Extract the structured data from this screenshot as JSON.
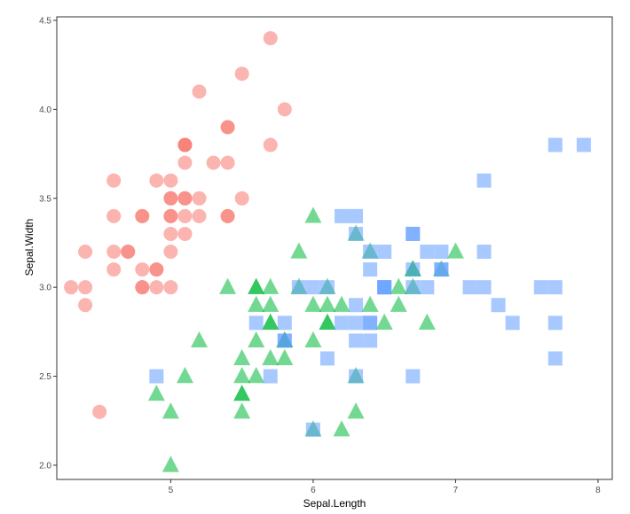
{
  "chart_data": {
    "type": "scatter",
    "title": "",
    "xlabel": "Sepal.Length",
    "ylabel": "Sepal.Width",
    "xlim": [
      4.2,
      8.1
    ],
    "ylim": [
      1.92,
      4.52
    ],
    "xticks": [
      5,
      6,
      7,
      8
    ],
    "yticks": [
      2.0,
      2.5,
      3.0,
      3.5,
      4.0,
      4.5
    ],
    "xtick_labels": [
      "5",
      "6",
      "7",
      "8"
    ],
    "ytick_labels": [
      "2.0",
      "2.5",
      "3.0",
      "3.5",
      "4.0",
      "4.5"
    ],
    "grid": false,
    "legend": "none",
    "series": [
      {
        "marker": "circle",
        "color": "#F8766D",
        "points": [
          [
            5.1,
            3.5
          ],
          [
            4.9,
            3.0
          ],
          [
            4.7,
            3.2
          ],
          [
            4.6,
            3.1
          ],
          [
            5.0,
            3.6
          ],
          [
            5.4,
            3.9
          ],
          [
            4.6,
            3.4
          ],
          [
            5.0,
            3.4
          ],
          [
            4.4,
            2.9
          ],
          [
            4.9,
            3.1
          ],
          [
            5.4,
            3.7
          ],
          [
            4.8,
            3.4
          ],
          [
            4.8,
            3.0
          ],
          [
            4.3,
            3.0
          ],
          [
            5.8,
            4.0
          ],
          [
            5.7,
            4.4
          ],
          [
            5.4,
            3.9
          ],
          [
            5.1,
            3.5
          ],
          [
            5.7,
            3.8
          ],
          [
            5.1,
            3.8
          ],
          [
            5.4,
            3.4
          ],
          [
            5.1,
            3.7
          ],
          [
            4.6,
            3.6
          ],
          [
            5.1,
            3.3
          ],
          [
            4.8,
            3.4
          ],
          [
            5.0,
            3.0
          ],
          [
            5.0,
            3.4
          ],
          [
            5.2,
            3.5
          ],
          [
            5.2,
            3.4
          ],
          [
            4.7,
            3.2
          ],
          [
            4.8,
            3.1
          ],
          [
            5.4,
            3.4
          ],
          [
            5.2,
            4.1
          ],
          [
            5.5,
            4.2
          ],
          [
            4.9,
            3.1
          ],
          [
            5.0,
            3.2
          ],
          [
            5.5,
            3.5
          ],
          [
            4.9,
            3.6
          ],
          [
            4.4,
            3.0
          ],
          [
            5.1,
            3.4
          ],
          [
            5.0,
            3.5
          ],
          [
            4.5,
            2.3
          ],
          [
            4.4,
            3.2
          ],
          [
            5.0,
            3.5
          ],
          [
            5.1,
            3.8
          ],
          [
            4.8,
            3.0
          ],
          [
            5.1,
            3.8
          ],
          [
            4.6,
            3.2
          ],
          [
            5.3,
            3.7
          ],
          [
            5.0,
            3.3
          ]
        ]
      },
      {
        "marker": "triangle",
        "color": "#00BA38",
        "points": [
          [
            7.0,
            3.2
          ],
          [
            6.4,
            3.2
          ],
          [
            6.9,
            3.1
          ],
          [
            5.5,
            2.3
          ],
          [
            6.5,
            2.8
          ],
          [
            5.7,
            2.8
          ],
          [
            6.3,
            3.3
          ],
          [
            4.9,
            2.4
          ],
          [
            6.6,
            2.9
          ],
          [
            5.2,
            2.7
          ],
          [
            5.0,
            2.0
          ],
          [
            5.9,
            3.0
          ],
          [
            6.0,
            2.2
          ],
          [
            6.1,
            2.9
          ],
          [
            5.6,
            2.9
          ],
          [
            6.7,
            3.1
          ],
          [
            5.6,
            3.0
          ],
          [
            5.8,
            2.7
          ],
          [
            6.2,
            2.2
          ],
          [
            5.6,
            2.5
          ],
          [
            5.9,
            3.2
          ],
          [
            6.1,
            2.8
          ],
          [
            6.3,
            2.5
          ],
          [
            6.1,
            2.8
          ],
          [
            6.4,
            2.9
          ],
          [
            6.6,
            3.0
          ],
          [
            6.8,
            2.8
          ],
          [
            6.7,
            3.0
          ],
          [
            6.0,
            2.9
          ],
          [
            5.7,
            2.6
          ],
          [
            5.5,
            2.4
          ],
          [
            5.5,
            2.4
          ],
          [
            5.8,
            2.7
          ],
          [
            6.0,
            2.7
          ],
          [
            5.4,
            3.0
          ],
          [
            6.0,
            3.4
          ],
          [
            6.7,
            3.1
          ],
          [
            6.3,
            2.3
          ],
          [
            5.6,
            3.0
          ],
          [
            5.5,
            2.5
          ],
          [
            5.5,
            2.6
          ],
          [
            6.1,
            3.0
          ],
          [
            5.8,
            2.6
          ],
          [
            5.0,
            2.3
          ],
          [
            5.6,
            2.7
          ],
          [
            5.7,
            3.0
          ],
          [
            5.7,
            2.9
          ],
          [
            6.2,
            2.9
          ],
          [
            5.1,
            2.5
          ],
          [
            5.7,
            2.8
          ]
        ]
      },
      {
        "marker": "square",
        "color": "#619CFF",
        "points": [
          [
            6.3,
            3.3
          ],
          [
            5.8,
            2.7
          ],
          [
            7.1,
            3.0
          ],
          [
            6.3,
            2.9
          ],
          [
            6.5,
            3.0
          ],
          [
            7.6,
            3.0
          ],
          [
            4.9,
            2.5
          ],
          [
            7.3,
            2.9
          ],
          [
            6.7,
            2.5
          ],
          [
            7.2,
            3.6
          ],
          [
            6.5,
            3.2
          ],
          [
            6.4,
            2.7
          ],
          [
            6.8,
            3.0
          ],
          [
            5.7,
            2.5
          ],
          [
            5.8,
            2.8
          ],
          [
            6.4,
            3.2
          ],
          [
            6.5,
            3.0
          ],
          [
            7.7,
            3.8
          ],
          [
            7.7,
            2.6
          ],
          [
            6.0,
            2.2
          ],
          [
            6.9,
            3.2
          ],
          [
            5.6,
            2.8
          ],
          [
            7.7,
            2.8
          ],
          [
            6.3,
            2.7
          ],
          [
            6.7,
            3.3
          ],
          [
            7.2,
            3.2
          ],
          [
            6.2,
            2.8
          ],
          [
            6.1,
            3.0
          ],
          [
            6.4,
            2.8
          ],
          [
            7.2,
            3.0
          ],
          [
            7.4,
            2.8
          ],
          [
            7.9,
            3.8
          ],
          [
            6.4,
            2.8
          ],
          [
            6.3,
            2.8
          ],
          [
            6.1,
            2.6
          ],
          [
            7.7,
            3.0
          ],
          [
            6.3,
            3.4
          ],
          [
            6.4,
            3.1
          ],
          [
            6.0,
            3.0
          ],
          [
            6.9,
            3.1
          ],
          [
            6.7,
            3.1
          ],
          [
            6.9,
            3.1
          ],
          [
            5.8,
            2.7
          ],
          [
            6.8,
            3.2
          ],
          [
            6.7,
            3.3
          ],
          [
            6.7,
            3.0
          ],
          [
            6.3,
            2.5
          ],
          [
            6.5,
            3.0
          ],
          [
            6.2,
            3.4
          ],
          [
            5.9,
            3.0
          ]
        ]
      }
    ]
  }
}
